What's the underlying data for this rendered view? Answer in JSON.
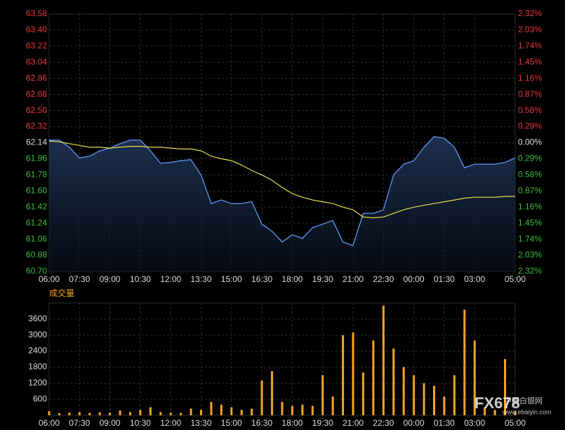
{
  "chart_data": [
    {
      "type": "line",
      "x": [
        "06:00",
        "06:30",
        "07:00",
        "07:30",
        "08:00",
        "08:30",
        "09:00",
        "09:30",
        "10:00",
        "10:30",
        "11:00",
        "11:30",
        "12:00",
        "12:30",
        "13:00",
        "13:30",
        "14:00",
        "14:30",
        "15:00",
        "15:30",
        "16:00",
        "16:30",
        "17:00",
        "17:30",
        "18:00",
        "18:30",
        "19:00",
        "19:30",
        "20:00",
        "20:30",
        "21:00",
        "21:30",
        "22:00",
        "22:30",
        "23:00",
        "23:30",
        "00:00",
        "00:30",
        "01:00",
        "01:30",
        "02:00",
        "02:30",
        "03:00",
        "03:30",
        "04:00",
        "04:30",
        "05:00"
      ],
      "series": [
        {
          "color": "#5b8fe8",
          "values": [
            62.17,
            62.17,
            62.09,
            61.97,
            61.99,
            62.05,
            62.08,
            62.13,
            62.17,
            62.17,
            62.05,
            61.91,
            61.92,
            61.94,
            61.95,
            61.78,
            61.46,
            61.5,
            61.46,
            61.46,
            61.48,
            61.23,
            61.15,
            61.03,
            61.11,
            61.07,
            61.19,
            61.23,
            61.27,
            61.03,
            60.99,
            61.35,
            61.35,
            61.39,
            61.78,
            61.9,
            61.94,
            62.09,
            62.21,
            62.19,
            62.09,
            61.86,
            61.9,
            61.9,
            61.9,
            61.92,
            61.97
          ]
        },
        {
          "color": "#e6df4a",
          "values": [
            62.16,
            62.15,
            62.13,
            62.11,
            62.09,
            62.09,
            62.08,
            62.09,
            62.1,
            62.1,
            62.09,
            62.09,
            62.08,
            62.07,
            62.07,
            62.05,
            61.99,
            61.96,
            61.94,
            61.89,
            61.83,
            61.78,
            61.72,
            61.64,
            61.57,
            61.53,
            61.5,
            61.48,
            61.46,
            61.42,
            61.39,
            61.31,
            61.3,
            61.31,
            61.35,
            61.39,
            61.42,
            61.44,
            61.46,
            61.48,
            61.5,
            61.52,
            61.53,
            61.53,
            61.53,
            61.54,
            61.54
          ]
        }
      ],
      "xticks": [
        "06:00",
        "07:30",
        "09:00",
        "10:30",
        "12:00",
        "13:30",
        "15:00",
        "16:30",
        "18:00",
        "19:30",
        "21:00",
        "22:30",
        "00:00",
        "01:30",
        "03:00",
        "05:00"
      ],
      "ylim": [
        60.7,
        63.58
      ],
      "yticks": [
        63.58,
        {
          "value": 63.4,
          "label": "63.40"
        },
        63.22,
        63.04,
        62.86,
        62.68,
        {
          "value": 62.5,
          "label": "62.50"
        },
        62.32,
        62.14,
        61.96,
        61.78,
        {
          "value": 61.6,
          "label": "61.60"
        },
        61.42,
        61.24,
        61.06,
        60.88,
        {
          "value": 60.7,
          "label": "60.70"
        }
      ],
      "y2lim": [
        -2.32,
        2.32
      ],
      "y2ticks": [
        {
          "value": 2.32,
          "label": "2.32%"
        },
        {
          "value": 2.03,
          "label": "2.03%"
        },
        {
          "value": 1.74,
          "label": "1.74%"
        },
        {
          "value": 1.45,
          "label": "1.45%"
        },
        {
          "value": 1.16,
          "label": "1.16%"
        },
        {
          "value": 0.87,
          "label": "0.87%"
        },
        {
          "value": 0.58,
          "label": "0.58%"
        },
        {
          "value": 0.29,
          "label": "0.29%"
        },
        {
          "value": 0,
          "label": "0.00%"
        },
        {
          "value": -0.29,
          "label": "0.29%"
        },
        {
          "value": -0.58,
          "label": "0.58%"
        },
        {
          "value": -0.87,
          "label": "0.87%"
        },
        {
          "value": -1.16,
          "label": "1.16%"
        },
        {
          "value": -1.45,
          "label": "1.45%"
        },
        {
          "value": -1.74,
          "label": "1.74%"
        },
        {
          "value": -2.03,
          "label": "2.03%"
        },
        {
          "value": -2.32,
          "label": "2.32%"
        }
      ],
      "grid": true,
      "up_color": "#e8383d",
      "down_color": "#3dbf3d",
      "flat_color": "#dddddd"
    },
    {
      "type": "bar",
      "title": "成交量",
      "x": [
        "06:00",
        "06:30",
        "07:00",
        "07:30",
        "08:00",
        "08:30",
        "09:00",
        "09:30",
        "10:00",
        "10:30",
        "11:00",
        "11:30",
        "12:00",
        "12:30",
        "13:00",
        "13:30",
        "14:00",
        "14:30",
        "15:00",
        "15:30",
        "16:00",
        "16:30",
        "17:00",
        "17:30",
        "18:00",
        "18:30",
        "19:00",
        "19:30",
        "20:00",
        "20:30",
        "21:00",
        "21:30",
        "22:00",
        "22:30",
        "23:00",
        "23:30",
        "00:00",
        "00:30",
        "01:00",
        "01:30",
        "02:00",
        "02:30",
        "03:00",
        "03:30",
        "04:00",
        "04:30",
        "05:00"
      ],
      "values": [
        150,
        80,
        100,
        120,
        90,
        110,
        100,
        180,
        120,
        200,
        300,
        120,
        100,
        90,
        250,
        200,
        500,
        400,
        300,
        200,
        250,
        1300,
        1650,
        500,
        350,
        400,
        350,
        1500,
        700,
        3000,
        3100,
        1600,
        2800,
        4100,
        2500,
        1800,
        1500,
        1200,
        1100,
        700,
        1500,
        3950,
        2800,
        300,
        200,
        2100,
        150
      ],
      "color": "#f5a623",
      "xticks": [
        "06:00",
        "07:30",
        "09:00",
        "10:30",
        "12:00",
        "13:30",
        "15:00",
        "16:30",
        "18:00",
        "19:30",
        "21:00",
        "22:30",
        "00:00",
        "01:30",
        "03:00",
        "05:00"
      ],
      "ylim": [
        0,
        4200
      ],
      "yticks": [
        600,
        1200,
        1800,
        2400,
        3000,
        3600
      ],
      "grid": true
    }
  ],
  "watermark": {
    "logo": "FX678",
    "site": "中国白银网",
    "url": "www.ebaiyin.com"
  }
}
